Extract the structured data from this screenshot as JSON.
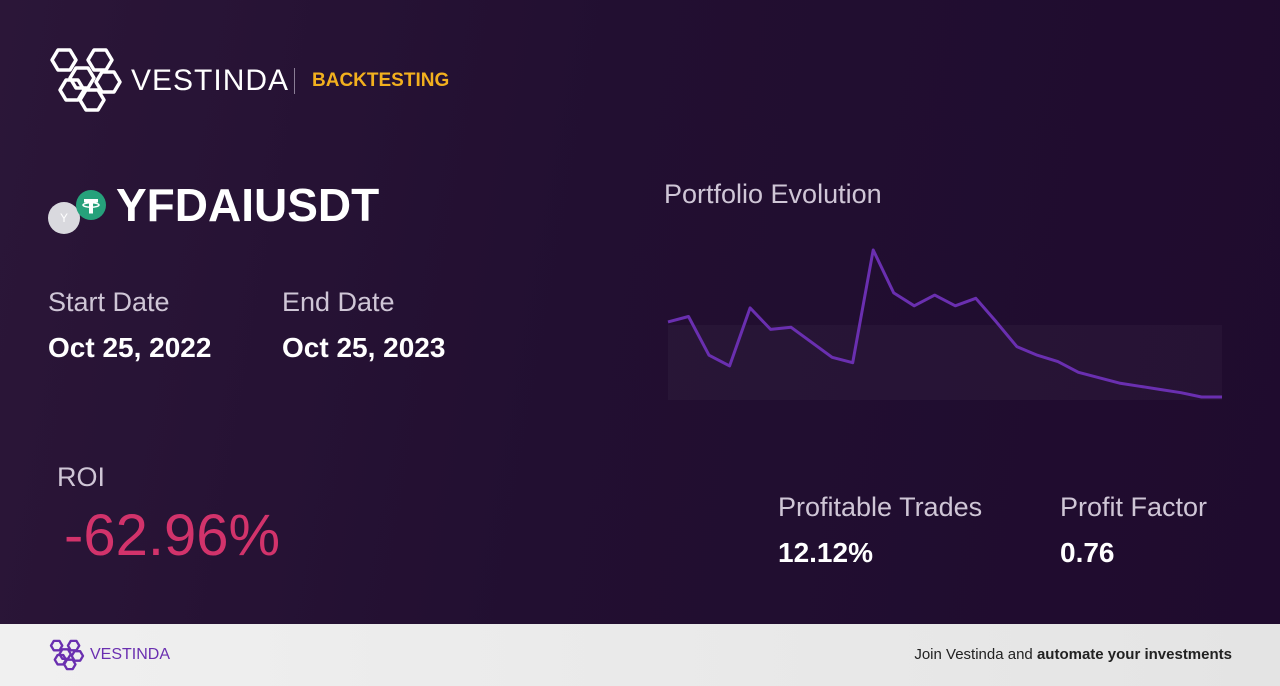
{
  "header": {
    "brand": "VESTINDA",
    "section": "BACKTESTING"
  },
  "pair": {
    "icon_letter": "Y",
    "symbol": "YFDAIUSDT"
  },
  "dates": {
    "start_label": "Start Date",
    "start": "Oct 25, 2022",
    "end_label": "End Date",
    "end": "Oct 25, 2023"
  },
  "chart_data": {
    "type": "line",
    "title": "Portfolio Evolution",
    "color": "#6a2fb0",
    "values": [
      75,
      80,
      44,
      34,
      88,
      68,
      70,
      56,
      42,
      37,
      142,
      102,
      90,
      100,
      90,
      97,
      75,
      52,
      44,
      38,
      28,
      23,
      18,
      15,
      12,
      9,
      5,
      5
    ]
  },
  "roi": {
    "label": "ROI",
    "value": "-62.96%"
  },
  "stats": [
    {
      "label": "Profitable Trades",
      "value": "12.12%"
    },
    {
      "label": "Profit Factor",
      "value": "0.76"
    }
  ],
  "footer": {
    "brand": "VESTINDA",
    "text": "Join Vestinda and ",
    "emphasis": "automate your investments"
  }
}
